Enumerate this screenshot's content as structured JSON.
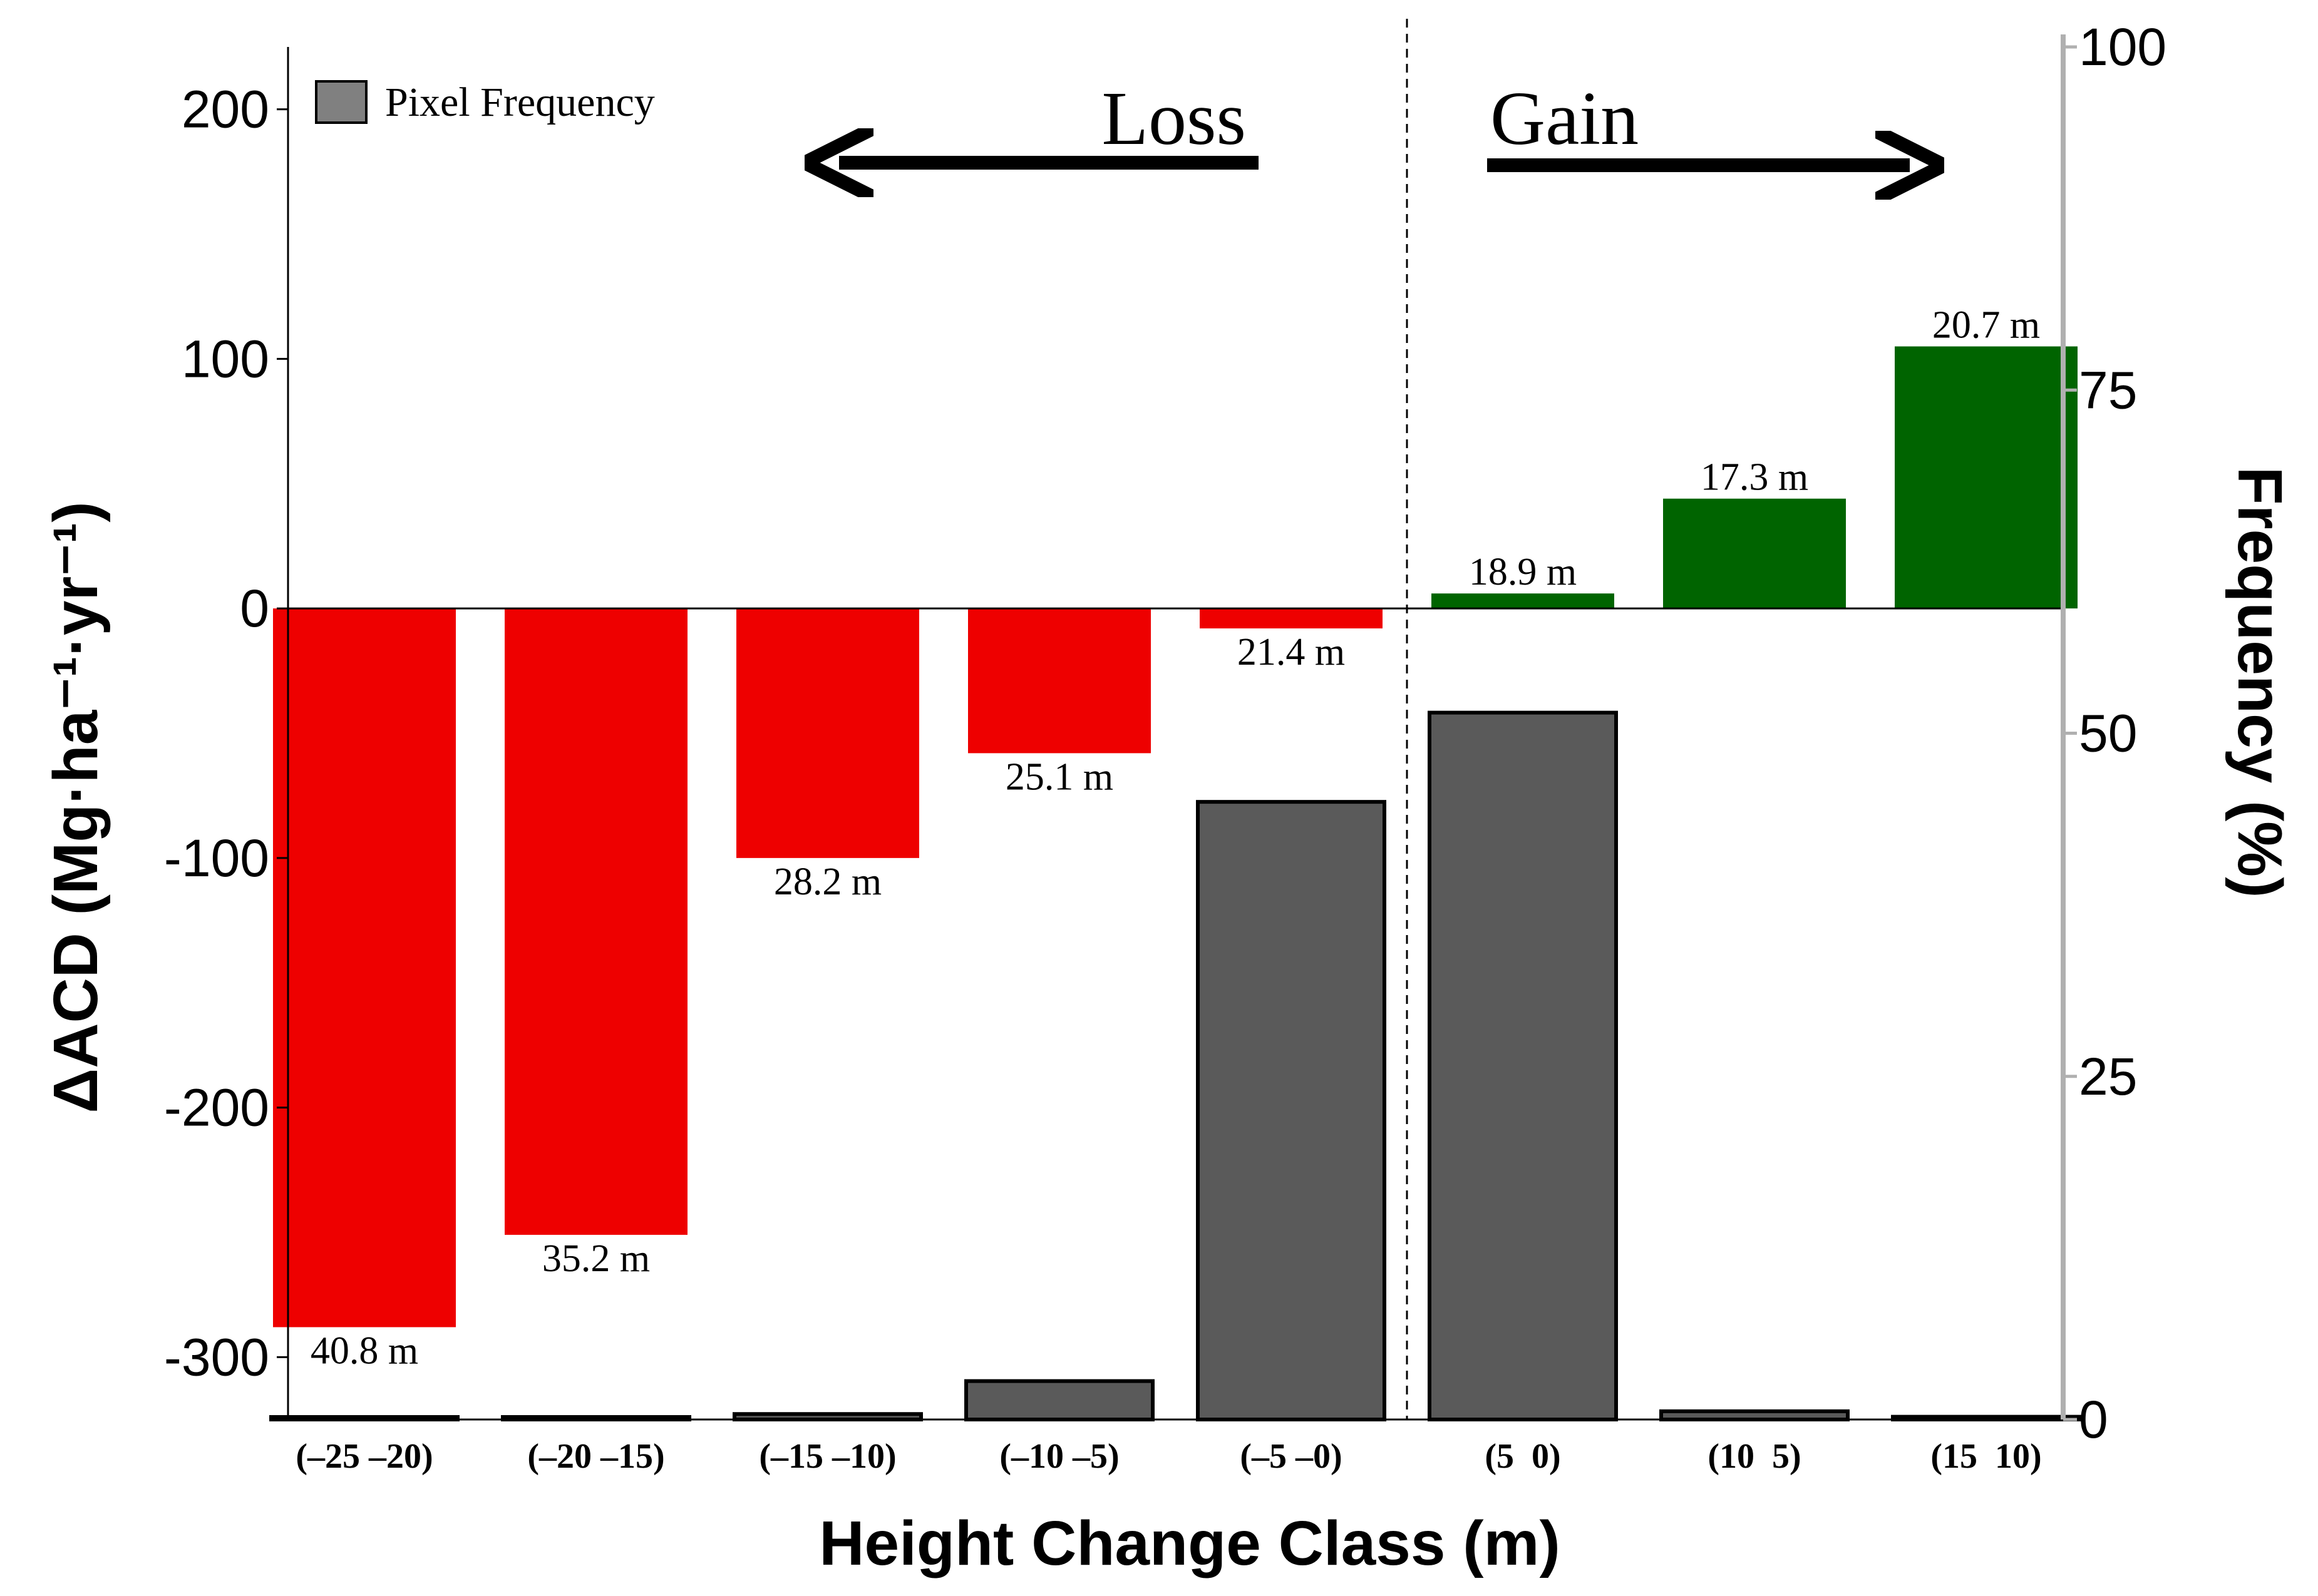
{
  "chart_data": {
    "type": "bar",
    "title": "",
    "xlabel": "Height Change Class (m)",
    "ylabel": "ΔACD (Mg·ha⁻¹·yr⁻¹)",
    "y2label": "Frequency (%)",
    "ylim": [
      -325,
      225
    ],
    "y2lim": [
      0,
      100
    ],
    "yticks": [
      200,
      100,
      0,
      -100,
      -200,
      -300
    ],
    "y2ticks": [
      100,
      75,
      50,
      25,
      0
    ],
    "categories": [
      "(–25 –20)",
      "(–20 –15)",
      "(–15 –10)",
      "(–10 –5)",
      "(–5 –0)",
      "(5  0)",
      "(10  5)",
      "(15  10)"
    ],
    "series": [
      {
        "name": "ΔACD",
        "axis": "left",
        "values": [
          -288,
          -251,
          -100,
          -58,
          -8,
          6,
          44,
          105
        ],
        "labels": [
          "40.8 m",
          "35.2 m",
          "28.2 m",
          "25.1 m",
          "21.4 m",
          "18.9 m",
          "17.3 m",
          "20.7 m"
        ],
        "colors": [
          "#ee0000",
          "#ee0000",
          "#ee0000",
          "#ee0000",
          "#ee0000",
          "#006400",
          "#006400",
          "#006400"
        ]
      },
      {
        "name": "Pixel Frequency",
        "axis": "right",
        "values": [
          0,
          0,
          0.4,
          2.8,
          45.0,
          51.5,
          0.6,
          0.2
        ],
        "color": "#5a5a5a"
      }
    ],
    "legend": {
      "label": "Pixel Frequency",
      "position": "top-left"
    },
    "annotations": {
      "loss": "Loss",
      "gain": "Gain"
    },
    "divider_after_category": 4
  }
}
